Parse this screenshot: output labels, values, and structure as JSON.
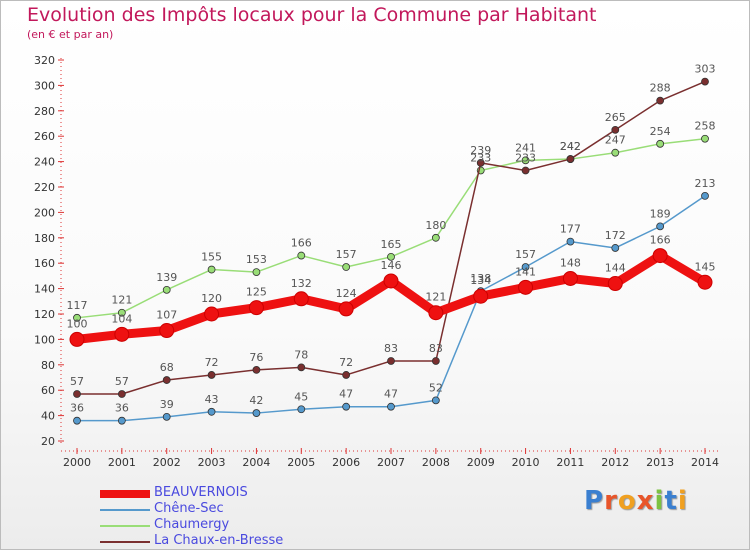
{
  "title": "Evolution des Impôts locaux pour la Commune par Habitant",
  "subtitle": "(en € et par an)",
  "logo": {
    "text": "Proxiti",
    "letters": [
      {
        "ch": "P",
        "color": "#3a7fd0"
      },
      {
        "ch": "r",
        "color": "#e8552a"
      },
      {
        "ch": "o",
        "color": "#f0a020"
      },
      {
        "ch": "x",
        "color": "#e8552a"
      },
      {
        "ch": "i",
        "color": "#7cc242"
      },
      {
        "ch": "t",
        "color": "#3a7fd0"
      },
      {
        "ch": "i",
        "color": "#f0a020"
      }
    ]
  },
  "chart_data": {
    "type": "line",
    "title": "Evolution des Impôts locaux pour la Commune par Habitant",
    "subtitle": "(en € et par an)",
    "xlabel": "",
    "ylabel": "",
    "x": [
      "2000",
      "2001",
      "2002",
      "2003",
      "2004",
      "2005",
      "2006",
      "2007",
      "2008",
      "2009",
      "2010",
      "2011",
      "2012",
      "2013",
      "2014"
    ],
    "ylim": [
      20,
      320
    ],
    "yticks": [
      20,
      40,
      60,
      80,
      100,
      120,
      140,
      160,
      180,
      200,
      220,
      240,
      260,
      280,
      300,
      320
    ],
    "grid": false,
    "legend_position": "bottom-left",
    "series": [
      {
        "name": "BEAUVERNOIS",
        "color": "#ee1111",
        "emphasis": true,
        "values": [
          100,
          104,
          107,
          120,
          125,
          132,
          124,
          146,
          121,
          134,
          141,
          148,
          144,
          166,
          145
        ]
      },
      {
        "name": "Chêne-Sec",
        "color": "#5599cc",
        "emphasis": false,
        "values": [
          36,
          36,
          39,
          43,
          42,
          45,
          47,
          47,
          52,
          138,
          157,
          177,
          172,
          189,
          213
        ]
      },
      {
        "name": "Chaumergy",
        "color": "#99dd77",
        "emphasis": false,
        "values": [
          117,
          121,
          139,
          155,
          153,
          166,
          157,
          165,
          180,
          233,
          241,
          242,
          247,
          254,
          258
        ]
      },
      {
        "name": "La Chaux-en-Bresse",
        "color": "#7a2f2f",
        "emphasis": false,
        "values": [
          57,
          57,
          68,
          72,
          76,
          78,
          72,
          83,
          83,
          239,
          233,
          242,
          265,
          288,
          303
        ]
      }
    ],
    "data_labels": [
      {
        "series": 0,
        "values": [
          "100",
          "104",
          "107",
          "120",
          "125",
          "132",
          "124",
          "146",
          "121",
          "134",
          "141",
          "148",
          "144",
          "166",
          "145"
        ]
      },
      {
        "series": 1,
        "values": [
          "36",
          "36",
          "39",
          "43",
          "42",
          "45",
          "47",
          "47",
          "52",
          "138",
          "157",
          "177",
          "172",
          "189",
          "213"
        ]
      },
      {
        "series": 2,
        "values": [
          "117",
          "121",
          "139",
          "155",
          "153",
          "166",
          "157",
          "165",
          "180",
          "233",
          "241",
          "242",
          "247",
          "254",
          "258"
        ]
      },
      {
        "series": 3,
        "values": [
          "57",
          "57",
          "68",
          "72",
          "76",
          "78",
          "72",
          "83",
          "83",
          "239",
          "233",
          "242",
          "265",
          "288",
          "303"
        ]
      }
    ]
  }
}
